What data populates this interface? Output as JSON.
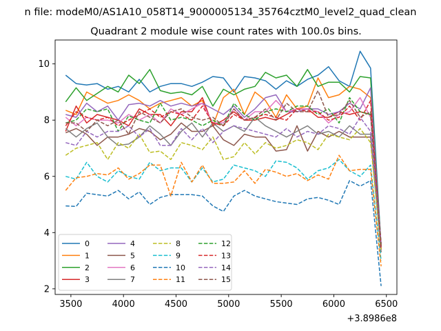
{
  "chart_data": {
    "type": "line",
    "suptitle": "n file: modeM0/AS1A10_058T14_9000005134_35764cztM0_level2_quad_clean",
    "title": "Quadrant 2 module wise count rates with 100.0s bins.",
    "xlabel": "",
    "ylabel": "",
    "x_offset_label": "+3.8986e8",
    "xlim": [
      3350,
      6600
    ],
    "ylim": [
      1.8,
      10.85
    ],
    "xticks": [
      3500,
      4000,
      4500,
      5000,
      5500,
      6000,
      6500
    ],
    "yticks": [
      2,
      4,
      6,
      8,
      10
    ],
    "grid": false,
    "legend_position": "lower-left",
    "legend_columns": 4,
    "x": [
      3450,
      3550,
      3650,
      3750,
      3850,
      3950,
      4050,
      4150,
      4250,
      4350,
      4450,
      4550,
      4650,
      4750,
      4850,
      4950,
      5050,
      5150,
      5250,
      5350,
      5450,
      5550,
      5650,
      5750,
      5850,
      5950,
      6050,
      6150,
      6250,
      6350,
      6450
    ],
    "series": [
      {
        "name": "0",
        "color": "#1f77b4",
        "dash": "solid",
        "values": [
          9.6,
          9.3,
          9.25,
          9.3,
          9.1,
          9.2,
          9.0,
          9.45,
          9.0,
          9.2,
          9.3,
          9.3,
          9.2,
          9.35,
          9.55,
          9.5,
          9.0,
          9.55,
          9.5,
          9.4,
          9.1,
          9.4,
          9.2,
          9.45,
          9.6,
          9.9,
          9.4,
          9.2,
          10.45,
          9.85,
          3.5
        ]
      },
      {
        "name": "1",
        "color": "#ff7f0e",
        "dash": "solid",
        "values": [
          8.35,
          8.2,
          9.0,
          8.8,
          8.6,
          8.7,
          8.9,
          8.7,
          8.4,
          8.6,
          8.7,
          8.8,
          8.5,
          8.7,
          7.8,
          8.8,
          9.1,
          8.2,
          9.0,
          8.7,
          8.1,
          8.9,
          8.4,
          8.5,
          9.5,
          8.8,
          8.9,
          9.2,
          9.1,
          8.8,
          3.4
        ]
      },
      {
        "name": "2",
        "color": "#2ca02c",
        "dash": "solid",
        "values": [
          8.65,
          9.15,
          8.7,
          8.95,
          9.2,
          9.0,
          9.6,
          9.3,
          9.8,
          9.05,
          8.95,
          9.0,
          8.9,
          9.2,
          8.5,
          9.1,
          8.9,
          9.1,
          9.2,
          9.7,
          9.5,
          9.6,
          9.2,
          9.8,
          9.2,
          9.35,
          9.35,
          9.0,
          9.55,
          9.5,
          3.5
        ]
      },
      {
        "name": "3",
        "color": "#d62728",
        "dash": "solid",
        "values": [
          7.6,
          8.5,
          7.9,
          8.2,
          8.1,
          8.0,
          7.8,
          8.4,
          8.2,
          8.2,
          7.8,
          8.3,
          8.3,
          8.8,
          7.8,
          8.0,
          8.3,
          8.0,
          8.0,
          8.1,
          8.0,
          8.2,
          8.4,
          8.4,
          8.1,
          8.1,
          8.3,
          8.2,
          8.3,
          8.2,
          3.6
        ]
      },
      {
        "name": "4",
        "color": "#9467bd",
        "dash": "solid",
        "values": [
          8.2,
          8.1,
          8.6,
          8.3,
          8.5,
          8.0,
          8.55,
          8.6,
          8.5,
          8.7,
          8.5,
          8.6,
          8.5,
          8.6,
          8.4,
          8.2,
          8.5,
          8.1,
          8.4,
          8.8,
          8.9,
          8.3,
          8.3,
          8.4,
          8.4,
          8.2,
          8.3,
          8.6,
          8.4,
          9.15,
          3.5
        ]
      },
      {
        "name": "5",
        "color": "#8c564b",
        "dash": "solid",
        "values": [
          7.55,
          7.7,
          7.5,
          7.1,
          7.4,
          7.4,
          7.5,
          7.7,
          7.6,
          7.3,
          7.5,
          7.9,
          7.6,
          7.6,
          7.8,
          7.3,
          7.1,
          7.5,
          7.4,
          7.4,
          6.9,
          6.95,
          7.8,
          6.9,
          7.6,
          7.4,
          7.6,
          7.4,
          7.4,
          7.4,
          3.3
        ]
      },
      {
        "name": "6",
        "color": "#e377c2",
        "dash": "solid",
        "values": [
          8.1,
          7.8,
          8.1,
          8.0,
          8.0,
          7.9,
          8.2,
          8.0,
          8.2,
          7.9,
          8.4,
          8.2,
          8.4,
          8.6,
          7.9,
          7.9,
          8.4,
          8.0,
          8.3,
          8.3,
          8.7,
          8.3,
          8.4,
          8.4,
          8.3,
          7.9,
          8.2,
          8.3,
          8.8,
          8.1,
          3.4
        ]
      },
      {
        "name": "7",
        "color": "#7f7f7f",
        "dash": "solid",
        "values": [
          7.7,
          7.4,
          7.7,
          7.9,
          7.4,
          7.1,
          7.15,
          7.4,
          7.8,
          7.5,
          7.1,
          7.6,
          7.9,
          7.4,
          7.9,
          7.6,
          7.8,
          7.6,
          8.1,
          7.8,
          7.6,
          7.4,
          7.6,
          7.8,
          7.5,
          7.6,
          7.4,
          7.8,
          7.5,
          7.5,
          3.3
        ]
      },
      {
        "name": "8",
        "color": "#bcbd22",
        "dash": "dashed",
        "values": [
          6.75,
          7.0,
          7.1,
          7.2,
          6.6,
          7.2,
          7.0,
          7.5,
          6.85,
          6.9,
          6.6,
          7.2,
          7.1,
          6.95,
          7.4,
          6.6,
          6.7,
          7.2,
          6.8,
          7.2,
          7.0,
          7.1,
          7.3,
          7.2,
          6.95,
          7.5,
          7.4,
          7.3,
          7.7,
          7.2,
          3.4
        ]
      },
      {
        "name": "9",
        "color": "#17becf",
        "dash": "dashed",
        "values": [
          6.0,
          5.9,
          6.5,
          6.0,
          5.8,
          6.2,
          6.0,
          5.9,
          6.5,
          6.2,
          6.3,
          6.3,
          5.8,
          6.3,
          5.8,
          5.9,
          6.4,
          6.3,
          6.2,
          6.0,
          6.55,
          6.5,
          6.3,
          5.9,
          6.2,
          6.3,
          6.6,
          6.2,
          6.0,
          6.4,
          3.0
        ]
      },
      {
        "name": "10",
        "color": "#1f77b4",
        "dash": "dashed",
        "values": [
          4.95,
          4.93,
          5.4,
          5.35,
          5.3,
          5.5,
          5.2,
          5.45,
          5.0,
          5.25,
          5.35,
          5.35,
          5.35,
          5.3,
          4.95,
          4.75,
          5.3,
          5.5,
          5.3,
          5.2,
          5.1,
          5.05,
          5.0,
          5.2,
          5.25,
          5.15,
          5.0,
          5.85,
          5.65,
          5.85,
          2.1
        ]
      },
      {
        "name": "11",
        "color": "#ff7f0e",
        "dash": "dashed",
        "values": [
          5.5,
          5.95,
          6.0,
          6.1,
          6.05,
          6.3,
          5.9,
          6.1,
          6.4,
          6.4,
          5.3,
          6.5,
          5.8,
          6.4,
          5.75,
          5.75,
          5.8,
          6.2,
          5.75,
          6.25,
          6.15,
          6.0,
          6.1,
          5.85,
          6.05,
          5.9,
          6.75,
          6.2,
          6.25,
          6.25,
          2.8
        ]
      },
      {
        "name": "12",
        "color": "#2ca02c",
        "dash": "dashed",
        "values": [
          7.9,
          8.0,
          8.4,
          8.3,
          8.4,
          7.6,
          8.15,
          8.0,
          7.9,
          8.6,
          8.0,
          8.1,
          8.0,
          7.8,
          8.0,
          7.8,
          8.6,
          8.2,
          8.0,
          8.3,
          8.4,
          8.3,
          8.5,
          8.5,
          8.2,
          8.4,
          7.9,
          8.8,
          8.3,
          8.2,
          3.5
        ]
      },
      {
        "name": "13",
        "color": "#d62728",
        "dash": "dashed",
        "values": [
          7.8,
          8.3,
          8.1,
          8.0,
          8.1,
          7.8,
          8.0,
          8.2,
          8.4,
          8.1,
          8.3,
          8.2,
          8.0,
          8.5,
          7.9,
          7.8,
          8.2,
          8.0,
          8.1,
          8.2,
          8.1,
          8.0,
          8.4,
          8.3,
          8.3,
          8.0,
          8.1,
          8.5,
          8.0,
          8.7,
          3.4
        ]
      },
      {
        "name": "14",
        "color": "#9467bd",
        "dash": "dashed",
        "values": [
          7.2,
          7.1,
          7.6,
          7.4,
          7.6,
          7.6,
          7.8,
          7.4,
          7.7,
          7.1,
          7.1,
          7.7,
          7.3,
          7.7,
          7.2,
          7.6,
          7.8,
          7.7,
          7.6,
          7.5,
          7.4,
          7.7,
          7.4,
          7.6,
          7.5,
          7.8,
          7.7,
          7.5,
          8.1,
          7.6,
          3.6
        ]
      },
      {
        "name": "15",
        "color": "#8c564b",
        "dash": "dashed",
        "values": [
          7.9,
          7.9,
          7.6,
          8.0,
          7.8,
          8.0,
          7.5,
          8.3,
          8.1,
          7.9,
          8.3,
          8.4,
          8.1,
          8.0,
          8.1,
          7.8,
          8.4,
          8.0,
          8.1,
          8.4,
          8.0,
          8.6,
          8.3,
          8.3,
          9.05,
          8.1,
          8.2,
          8.7,
          8.1,
          8.3,
          3.6
        ]
      }
    ]
  }
}
